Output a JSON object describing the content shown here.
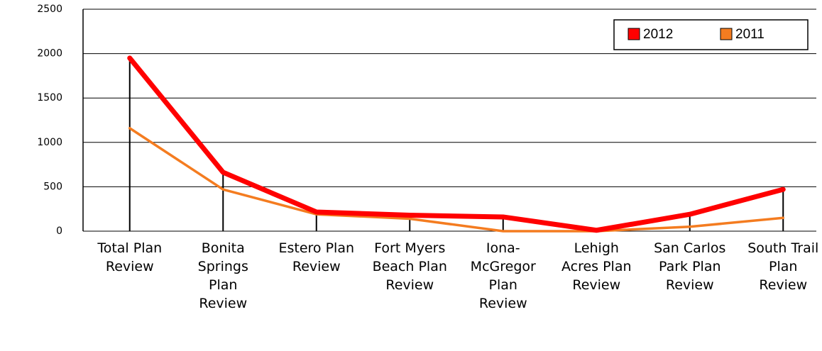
{
  "chart_data": {
    "type": "line",
    "categories": [
      "Total Plan Review",
      "Bonita Springs Plan Review",
      "Estero Plan Review",
      "Fort Myers Beach Plan Review",
      "Iona-McGregor Plan Review",
      "Lehigh Acres Plan Review",
      "San Carlos Park Plan Review",
      "South Trail Plan Review"
    ],
    "series": [
      {
        "name": "2012",
        "color": "#ff0000",
        "values": [
          1950,
          663,
          216,
          180,
          160,
          10,
          190,
          470
        ]
      },
      {
        "name": "2011",
        "color": "#f47c20",
        "values": [
          1160,
          470,
          190,
          140,
          0,
          0,
          50,
          150
        ]
      }
    ],
    "ylim": [
      0,
      2500
    ],
    "yticks": [
      0,
      500,
      1000,
      1500,
      2000,
      2500
    ],
    "grid": true,
    "legend": "top-right"
  }
}
